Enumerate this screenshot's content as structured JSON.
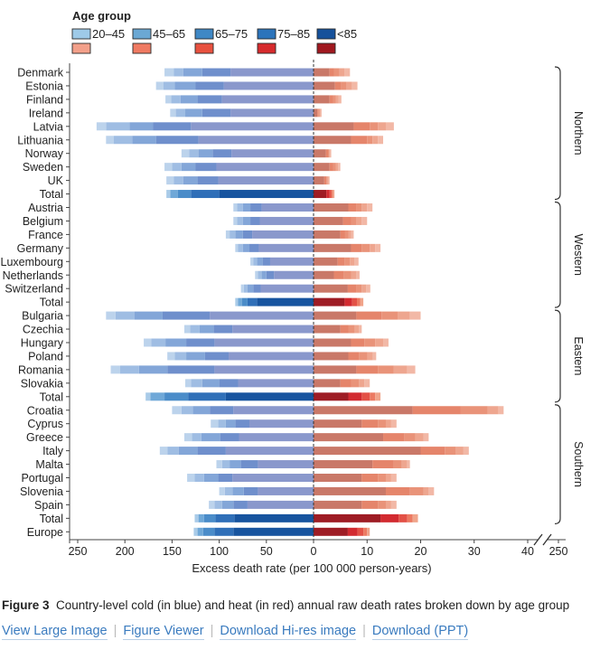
{
  "chart_data": {
    "type": "bar",
    "subtype": "diverging-stacked-bar",
    "legend_title": "Age group",
    "age_groups": [
      "20–45",
      "45–65",
      "65–75",
      "75–85",
      "<85"
    ],
    "colors": {
      "cold": [
        "#bcd3ec",
        "#9fbde3",
        "#83a6d8",
        "#6f8fcc",
        "#8a98cc"
      ],
      "cold_total": [
        "#a9cbe8",
        "#6fa8d8",
        "#4a8cc9",
        "#2f6fb8",
        "#17549f"
      ],
      "heat": [
        "#f2b8a6",
        "#eea68f",
        "#e99379",
        "#e5856b",
        "#c97868"
      ],
      "heat_total": [
        "#f0a48a",
        "#ec7a62",
        "#e35146",
        "#d22a30",
        "#9e1c24"
      ],
      "legend_cold": [
        "#9ecae8",
        "#6ba8d4",
        "#3f88c5",
        "#2c74bb",
        "#16519b"
      ],
      "legend_heat": [
        "#f3a08a",
        "#ef7a62",
        "#e8513f",
        "#d62b2d",
        "#a0181f"
      ]
    },
    "regions": [
      {
        "name": "Northern",
        "countries": [
          {
            "name": "Denmark",
            "cold": [
              10,
              10,
              20,
              30,
              88
            ],
            "heat": [
              1,
              1,
              1,
              0.8,
              3
            ]
          },
          {
            "name": "Estonia",
            "cold": [
              8,
              12,
              22,
              30,
              95
            ],
            "heat": [
              1,
              1,
              1,
              1.2,
              4
            ]
          },
          {
            "name": "Finland",
            "cold": [
              6,
              10,
              18,
              26,
              97
            ],
            "heat": [
              0.5,
              0.5,
              0.5,
              0.7,
              3
            ]
          },
          {
            "name": "Ireland",
            "cold": [
              6,
              10,
              18,
              30,
              88
            ],
            "heat": [
              0.2,
              0.2,
              0.2,
              0.2,
              0.7
            ]
          },
          {
            "name": "Latvia",
            "cold": [
              10,
              25,
              25,
              40,
              130
            ],
            "heat": [
              1.5,
              1.5,
              1.5,
              3,
              7.5
            ]
          },
          {
            "name": "Lithuania",
            "cold": [
              8,
              20,
              25,
              45,
              122
            ],
            "heat": [
              1,
              1,
              1,
              3,
              7
            ]
          },
          {
            "name": "Norway",
            "cold": [
              8,
              10,
              15,
              20,
              87
            ],
            "heat": [
              0.2,
              0.2,
              0.2,
              0.4,
              2.3
            ]
          },
          {
            "name": "Sweden",
            "cold": [
              8,
              10,
              15,
              22,
              103
            ],
            "heat": [
              0.4,
              0.4,
              0.5,
              0.7,
              3
            ]
          },
          {
            "name": "UK",
            "cold": [
              8,
              10,
              15,
              22,
              101
            ],
            "heat": [
              0.2,
              0.2,
              0.2,
              0.4,
              2
            ]
          },
          {
            "name": "Total",
            "total": true,
            "cold": [
              4,
              8,
              14,
              30,
              100
            ],
            "heat": [
              0.3,
              0.3,
              0.3,
              0.6,
              2.4
            ]
          }
        ]
      },
      {
        "name": "Western",
        "countries": [
          {
            "name": "Austria",
            "cold": [
              4,
              6,
              8,
              12,
              55
            ],
            "heat": [
              1,
              1,
              1,
              1.5,
              6.5
            ]
          },
          {
            "name": "Belgium",
            "cold": [
              4,
              6,
              8,
              10,
              57
            ],
            "heat": [
              1,
              1,
              1,
              1.5,
              5.5
            ]
          },
          {
            "name": "France",
            "cold": [
              4,
              6,
              8,
              10,
              65
            ],
            "heat": [
              0.5,
              0.5,
              0.6,
              0.9,
              5
            ]
          },
          {
            "name": "Germany",
            "cold": [
              3,
              5,
              7,
              10,
              58
            ],
            "heat": [
              1,
              1,
              1.5,
              2,
              7
            ]
          },
          {
            "name": "Luxembourg",
            "cold": [
              3,
              4,
              6,
              8,
              46
            ],
            "heat": [
              0.8,
              0.8,
              1,
              1.3,
              4.5
            ]
          },
          {
            "name": "Netherlands",
            "cold": [
              3,
              4,
              5,
              8,
              42
            ],
            "heat": [
              0.6,
              1,
              1.3,
              1.9,
              3.8
            ]
          },
          {
            "name": "Switzerland",
            "cold": [
              3,
              4,
              6,
              8,
              56
            ],
            "heat": [
              0.8,
              0.8,
              1,
              1.6,
              6.4
            ]
          },
          {
            "name": "Total",
            "total": true,
            "cold": [
              3,
              4,
              6,
              10,
              60
            ],
            "heat": [
              0.6,
              0.6,
              0.9,
              1.4,
              5.8
            ]
          }
        ]
      },
      {
        "name": "Eastern",
        "countries": [
          {
            "name": "Bulgaria",
            "cold": [
              10,
              20,
              30,
              50,
              110
            ],
            "heat": [
              2,
              2.3,
              3,
              4.7,
              8
            ]
          },
          {
            "name": "Czechia",
            "cold": [
              6,
              10,
              15,
              20,
              86
            ],
            "heat": [
              0.5,
              0.8,
              1.2,
              1.5,
              5
            ]
          },
          {
            "name": "Hungary",
            "cold": [
              8,
              15,
              22,
              30,
              105
            ],
            "heat": [
              1,
              1.5,
              2,
              2.5,
              7
            ]
          },
          {
            "name": "Poland",
            "cold": [
              8,
              12,
              20,
              25,
              90
            ],
            "heat": [
              0.6,
              1,
              1.6,
              2,
              6.5
            ]
          },
          {
            "name": "Romania",
            "cold": [
              10,
              20,
              30,
              50,
              105
            ],
            "heat": [
              1.5,
              2.5,
              3,
              4,
              8
            ]
          },
          {
            "name": "Slovakia",
            "cold": [
              6,
              12,
              18,
              20,
              80
            ],
            "heat": [
              1,
              1,
              1.5,
              2,
              5
            ]
          },
          {
            "name": "Total",
            "total": true,
            "cold": [
              5,
              15,
              25,
              40,
              93
            ],
            "heat": [
              1,
              1,
              1.5,
              2.5,
              6.5
            ]
          }
        ]
      },
      {
        "name": "Southern",
        "countries": [
          {
            "name": "Croatia",
            "cold": [
              10,
              12,
              18,
              25,
              85
            ],
            "heat": [
              1,
              2,
              5,
              9,
              18.5
            ]
          },
          {
            "name": "Cyprus",
            "cold": [
              8,
              8,
              10,
              15,
              68
            ],
            "heat": [
              1,
              1,
              1.5,
              3,
              9
            ]
          },
          {
            "name": "Greece",
            "cold": [
              8,
              10,
              20,
              20,
              79
            ],
            "heat": [
              1,
              1.5,
              2,
              4,
              13
            ]
          },
          {
            "name": "Italy",
            "cold": [
              8,
              12,
              20,
              30,
              93
            ],
            "heat": [
              1,
              1.5,
              2,
              4.5,
              20
            ]
          },
          {
            "name": "Malta",
            "cold": [
              6,
              8,
              12,
              18,
              59
            ],
            "heat": [
              0.5,
              1,
              1.5,
              4,
              11
            ]
          },
          {
            "name": "Portugal",
            "cold": [
              8,
              10,
              15,
              15,
              86
            ],
            "heat": [
              1,
              1,
              1.5,
              3,
              9
            ]
          },
          {
            "name": "Slovenia",
            "cold": [
              6,
              8,
              12,
              15,
              59
            ],
            "heat": [
              1,
              1,
              2.5,
              4.5,
              13.5
            ]
          },
          {
            "name": "Spain",
            "cold": [
              6,
              8,
              12,
              15,
              70
            ],
            "heat": [
              1,
              1,
              1.5,
              3,
              9
            ]
          },
          {
            "name": "Total",
            "total": true,
            "cold": [
              4,
              6,
              12,
              20,
              84
            ],
            "heat": [
              1,
              1,
              1.6,
              3.4,
              12.5
            ]
          }
        ]
      }
    ],
    "footer_rows": [
      {
        "name": "Europe",
        "total": true,
        "cold": [
          4,
          6,
          12,
          20,
          85
        ],
        "heat": [
          0.5,
          0.7,
          1.1,
          1.8,
          6.4
        ]
      }
    ],
    "x_axis": {
      "label": "Excess death rate (per 100 000 person-years)",
      "cold_ticks": [
        250,
        200,
        150,
        100,
        50,
        0
      ],
      "heat_ticks": [
        10,
        20,
        30,
        40
      ],
      "break_tick": 250,
      "cold_range": [
        0,
        250
      ],
      "heat_range": [
        0,
        40
      ]
    }
  },
  "caption": {
    "figure_label": "Figure 3",
    "text": "Country-level cold (in blue) and heat (in red) annual raw death rates broken down by age group"
  },
  "links": [
    {
      "label": "View Large Image"
    },
    {
      "label": "Figure Viewer"
    },
    {
      "label": "Download Hi-res image"
    },
    {
      "label": "Download (PPT)"
    }
  ]
}
